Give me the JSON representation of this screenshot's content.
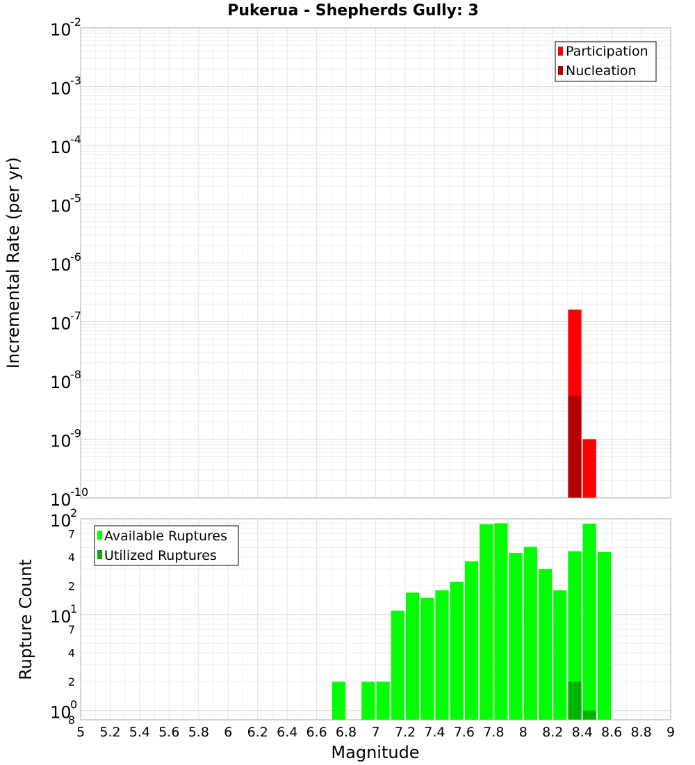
{
  "chart_data": [
    {
      "type": "bar",
      "title": "Pukerua - Shepherds Gully: 3",
      "xlabel": "",
      "ylabel": "Incremental Rate (per yr)",
      "xlim": [
        5,
        9
      ],
      "ylim": [
        1e-10,
        0.01
      ],
      "yscale": "log",
      "bar_width": 0.1,
      "grid": true,
      "legend_position": "top-right",
      "series": [
        {
          "name": "Participation",
          "color": "#ff0000",
          "x": [
            8.35,
            8.45
          ],
          "values": [
            1.6e-07,
            1e-09
          ]
        },
        {
          "name": "Nucleation",
          "color": "#b30000",
          "x": [
            8.35
          ],
          "values": [
            5.5e-09
          ]
        }
      ]
    },
    {
      "type": "bar",
      "title": "",
      "xlabel": "Magnitude",
      "ylabel": "Rupture Count",
      "xlim": [
        5,
        9
      ],
      "ylim": [
        0.8,
        100
      ],
      "yscale": "log",
      "bar_width": 0.1,
      "grid": true,
      "legend_position": "top-left",
      "series": [
        {
          "name": "Available Ruptures",
          "color": "#00ff00",
          "x": [
            6.75,
            6.95,
            7.05,
            7.15,
            7.25,
            7.35,
            7.45,
            7.55,
            7.65,
            7.75,
            7.85,
            7.95,
            8.05,
            8.15,
            8.25,
            8.35,
            8.45,
            8.55
          ],
          "values": [
            2,
            2,
            2,
            11,
            17,
            15,
            18,
            22,
            36,
            88,
            90,
            44,
            51,
            30,
            18,
            46,
            89,
            45
          ]
        },
        {
          "name": "Utilized Ruptures",
          "color": "#00b300",
          "x": [
            8.35,
            8.45
          ],
          "values": [
            2,
            1
          ]
        }
      ]
    }
  ],
  "x_ticks": [
    "5",
    "5.2",
    "5.4",
    "5.6",
    "5.8",
    "6",
    "6.2",
    "6.4",
    "6.6",
    "6.8",
    "7",
    "7.2",
    "7.4",
    "7.6",
    "7.8",
    "8",
    "8.2",
    "8.4",
    "8.6",
    "8.8",
    "9"
  ],
  "top_y_ticks": [
    {
      "base": "10",
      "exp": "-2"
    },
    {
      "base": "10",
      "exp": "-3"
    },
    {
      "base": "10",
      "exp": "-4"
    },
    {
      "base": "10",
      "exp": "-5"
    },
    {
      "base": "10",
      "exp": "-6"
    },
    {
      "base": "10",
      "exp": "-7"
    },
    {
      "base": "10",
      "exp": "-8"
    },
    {
      "base": "10",
      "exp": "-9"
    },
    {
      "base": "10",
      "exp": "-10"
    }
  ],
  "bottom_y_ticks": {
    "major": [
      {
        "base": "10",
        "exp": "2"
      },
      {
        "base": "10",
        "exp": "1"
      },
      {
        "base": "10",
        "exp": "0"
      }
    ],
    "minor": [
      "7",
      "4",
      "2",
      "7",
      "4",
      "2",
      "8"
    ]
  }
}
